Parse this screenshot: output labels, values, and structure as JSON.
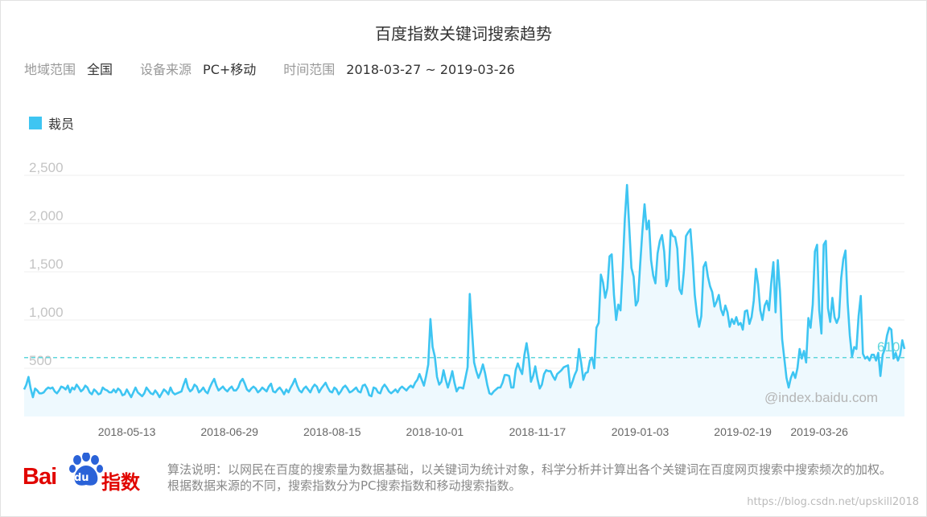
{
  "title": "百度指数关键词搜索趋势",
  "filters": [
    {
      "label": "地域范围",
      "value": "全国"
    },
    {
      "label": "设备来源",
      "value": "PC+移动"
    },
    {
      "label": "时间范围",
      "value": "2018-03-27 ~ 2019-03-26"
    }
  ],
  "colors": {
    "series": "#3ec5f2",
    "fill": "#eef9fe",
    "avg": "#5fd6dc",
    "grid": "#efefef",
    "axis_text": "#c4c4c4",
    "x_text": "#666666",
    "brand": "#e10601"
  },
  "watermark": "@index.baidu.com",
  "logo": {
    "text_left": "Bai",
    "text_paw": "du",
    "text_right": "指数"
  },
  "note": "算法说明：以网民在百度的搜索量为数据基础，以关键词为统计对象，科学分析并计算出各个关键词在百度网页搜索中搜索频次的加权。根据数据来源的不同，搜索指数分为PC搜索指数和移动搜索指数。",
  "credit": "https://blog.csdn.net/upskill2018",
  "chart_data": {
    "type": "area",
    "legend_position": "top-left",
    "grid": true,
    "series": [
      {
        "name": "裁员"
      }
    ],
    "ylim": [
      0,
      2500
    ],
    "yticks": [
      "2,500",
      "2,000",
      "1,500",
      "1,000",
      "500"
    ],
    "ytick_values": [
      2500,
      2000,
      1500,
      1000,
      500
    ],
    "xticks": [
      "2018-05-13",
      "2018-06-29",
      "2018-08-15",
      "2018-10-01",
      "2018-11-17",
      "2019-01-03",
      "2019-02-19",
      "2019-03-26"
    ],
    "xtick_days": [
      47,
      94,
      141,
      188,
      235,
      282,
      329,
      364
    ],
    "average": 610,
    "average_label": "610",
    "x_start": "2018-03-27",
    "x_end": "2019-03-26",
    "values": [
      280,
      330,
      410,
      290,
      200,
      290,
      270,
      240,
      240,
      250,
      280,
      300,
      290,
      300,
      260,
      240,
      270,
      310,
      300,
      280,
      320,
      250,
      300,
      280,
      330,
      300,
      260,
      280,
      320,
      300,
      250,
      230,
      280,
      260,
      230,
      240,
      300,
      280,
      270,
      250,
      250,
      280,
      250,
      290,
      270,
      220,
      230,
      280,
      240,
      200,
      250,
      300,
      250,
      230,
      210,
      240,
      300,
      270,
      240,
      230,
      270,
      240,
      200,
      240,
      280,
      260,
      230,
      300,
      250,
      230,
      240,
      250,
      260,
      330,
      390,
      300,
      260,
      280,
      330,
      310,
      250,
      270,
      300,
      260,
      240,
      300,
      350,
      390,
      320,
      270,
      290,
      310,
      280,
      260,
      290,
      310,
      270,
      270,
      300,
      360,
      390,
      340,
      280,
      260,
      290,
      310,
      290,
      250,
      270,
      300,
      280,
      260,
      310,
      340,
      260,
      250,
      280,
      300,
      270,
      230,
      280,
      250,
      300,
      340,
      390,
      320,
      270,
      250,
      290,
      310,
      280,
      250,
      300,
      330,
      310,
      250,
      290,
      320,
      350,
      300,
      260,
      250,
      300,
      280,
      230,
      260,
      300,
      320,
      290,
      250,
      260,
      280,
      300,
      260,
      250,
      320,
      330,
      290,
      220,
      210,
      300,
      290,
      250,
      240,
      300,
      330,
      300,
      260,
      240,
      260,
      280,
      250,
      290,
      310,
      290,
      270,
      300,
      320,
      300,
      350,
      380,
      440,
      380,
      320,
      420,
      540,
      1010,
      720,
      620,
      410,
      330,
      360,
      480,
      380,
      300,
      380,
      470,
      350,
      260,
      300,
      300,
      290,
      400,
      510,
      1270,
      900,
      560,
      470,
      400,
      460,
      540,
      450,
      330,
      240,
      230,
      260,
      280,
      300,
      300,
      350,
      430,
      430,
      420,
      300,
      300,
      480,
      550,
      490,
      440,
      640,
      760,
      610,
      360,
      420,
      520,
      390,
      290,
      330,
      440,
      480,
      470,
      470,
      420,
      380,
      440,
      460,
      480,
      510,
      520,
      530,
      300,
      360,
      430,
      480,
      700,
      560,
      380,
      450,
      460,
      580,
      610,
      500,
      920,
      970,
      1470,
      1390,
      1230,
      1330,
      1660,
      1680,
      1260,
      1000,
      1160,
      1100,
      1530,
      2050,
      2400,
      1960,
      1540,
      1450,
      1150,
      1200,
      1570,
      1910,
      2200,
      1940,
      2030,
      1620,
      1460,
      1380,
      1690,
      1820,
      1880,
      1710,
      1350,
      1430,
      1930,
      1870,
      1860,
      1740,
      1320,
      1270,
      1500,
      1870,
      1910,
      1940,
      1640,
      1260,
      1060,
      930,
      1040,
      1550,
      1600,
      1450,
      1350,
      1290,
      1140,
      1190,
      1260,
      1110,
      1050,
      1150,
      1080,
      930,
      1010,
      960,
      1030,
      950,
      970,
      900,
      1090,
      1100,
      960,
      1030,
      1200,
      1530,
      1370,
      1100,
      1000,
      1150,
      1200,
      1100,
      1380,
      1600,
      1080,
      1620,
      1300,
      800,
      600,
      400,
      300,
      400,
      460,
      400,
      500,
      700,
      600,
      680,
      560,
      1020,
      920,
      1160,
      1710,
      1780,
      1100,
      860,
      1780,
      1820,
      1120,
      980,
      1230,
      1030,
      970,
      1030,
      1430,
      1630,
      1720,
      1180,
      840,
      620,
      720,
      700,
      1040,
      1250,
      650,
      600,
      620,
      580,
      640,
      640,
      580,
      660,
      420,
      640,
      700,
      840,
      920,
      900,
      600,
      660,
      580,
      640,
      790,
      700
    ]
  }
}
